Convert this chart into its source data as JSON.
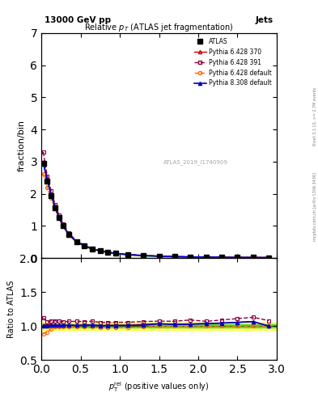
{
  "title": "13000 GeV pp",
  "title_right": "Jets",
  "plot_title": "Relative $p_{T}$ (ATLAS jet fragmentation)",
  "ylabel_main": "fraction/bin",
  "ylabel_ratio": "Ratio to ATLAS",
  "watermark": "ATLAS_2019_I1740909",
  "right_label_top": "Rivet 3.1.10, >= 2.7M events",
  "right_label_bottom": "mcplots.cern.ch [arXiv:1306.3436]",
  "x_data": [
    0.025,
    0.075,
    0.125,
    0.175,
    0.225,
    0.275,
    0.35,
    0.45,
    0.55,
    0.65,
    0.75,
    0.85,
    0.95,
    1.1,
    1.3,
    1.5,
    1.7,
    1.9,
    2.1,
    2.3,
    2.5,
    2.7,
    2.9
  ],
  "atlas_y": [
    2.95,
    2.4,
    1.95,
    1.55,
    1.25,
    1.0,
    0.72,
    0.5,
    0.37,
    0.28,
    0.22,
    0.175,
    0.14,
    0.105,
    0.075,
    0.055,
    0.042,
    0.033,
    0.027,
    0.022,
    0.018,
    0.015,
    0.013
  ],
  "py6_370_y": [
    3.0,
    2.45,
    2.0,
    1.58,
    1.27,
    1.01,
    0.73,
    0.505,
    0.375,
    0.285,
    0.22,
    0.177,
    0.142,
    0.106,
    0.077,
    0.057,
    0.043,
    0.034,
    0.028,
    0.023,
    0.019,
    0.016,
    0.013
  ],
  "py6_391_y": [
    3.3,
    2.55,
    2.1,
    1.67,
    1.34,
    1.065,
    0.77,
    0.535,
    0.395,
    0.3,
    0.232,
    0.185,
    0.148,
    0.111,
    0.08,
    0.059,
    0.045,
    0.036,
    0.029,
    0.024,
    0.02,
    0.017,
    0.014
  ],
  "py6_def_y": [
    2.62,
    2.18,
    1.87,
    1.53,
    1.24,
    0.99,
    0.715,
    0.495,
    0.365,
    0.277,
    0.215,
    0.171,
    0.137,
    0.103,
    0.074,
    0.055,
    0.042,
    0.033,
    0.027,
    0.022,
    0.018,
    0.015,
    0.013
  ],
  "py8_def_y": [
    2.95,
    2.42,
    1.97,
    1.57,
    1.265,
    1.01,
    0.73,
    0.505,
    0.375,
    0.285,
    0.221,
    0.176,
    0.141,
    0.106,
    0.076,
    0.057,
    0.043,
    0.034,
    0.028,
    0.023,
    0.019,
    0.016,
    0.013
  ],
  "atlas_err": [
    0.05,
    0.04,
    0.03,
    0.025,
    0.02,
    0.016,
    0.012,
    0.009,
    0.007,
    0.005,
    0.004,
    0.003,
    0.0025,
    0.002,
    0.0015,
    0.001,
    0.0008,
    0.0007,
    0.0006,
    0.0005,
    0.0004,
    0.0004,
    0.0003
  ],
  "ratio_py6_370": [
    1.017,
    1.021,
    1.026,
    1.019,
    1.016,
    1.01,
    1.014,
    1.01,
    1.014,
    1.018,
    1.0,
    1.011,
    1.014,
    1.01,
    1.027,
    1.036,
    1.024,
    1.03,
    1.037,
    1.045,
    1.055,
    1.067,
    1.0
  ],
  "ratio_py6_391": [
    1.12,
    1.063,
    1.077,
    1.077,
    1.072,
    1.065,
    1.069,
    1.07,
    1.068,
    1.071,
    1.055,
    1.057,
    1.057,
    1.057,
    1.067,
    1.073,
    1.071,
    1.09,
    1.07,
    1.09,
    1.11,
    1.13,
    1.08
  ],
  "ratio_py6_def": [
    0.888,
    0.908,
    0.959,
    0.987,
    0.992,
    0.99,
    0.993,
    0.99,
    0.986,
    0.989,
    0.977,
    0.977,
    0.979,
    0.981,
    0.987,
    1.0,
    1.0,
    1.0,
    1.0,
    1.0,
    1.0,
    1.0,
    1.0
  ],
  "ratio_py8_def": [
    1.0,
    1.008,
    1.01,
    1.013,
    1.012,
    1.01,
    1.014,
    1.01,
    1.014,
    1.018,
    1.005,
    1.006,
    1.007,
    1.01,
    1.013,
    1.036,
    1.024,
    1.03,
    1.037,
    1.045,
    1.055,
    1.067,
    1.0
  ],
  "color_atlas": "#000000",
  "color_py6_370": "#cc0000",
  "color_py6_391": "#880044",
  "color_py6_def": "#ff6600",
  "color_py8_def": "#0000cc",
  "xlim": [
    0,
    3
  ],
  "ylim_main": [
    0,
    7
  ],
  "ylim_ratio": [
    0.5,
    2.0
  ],
  "yticks_main": [
    0,
    1,
    2,
    3,
    4,
    5,
    6,
    7
  ],
  "yticks_ratio": [
    0.5,
    1.0,
    1.5,
    2.0
  ]
}
